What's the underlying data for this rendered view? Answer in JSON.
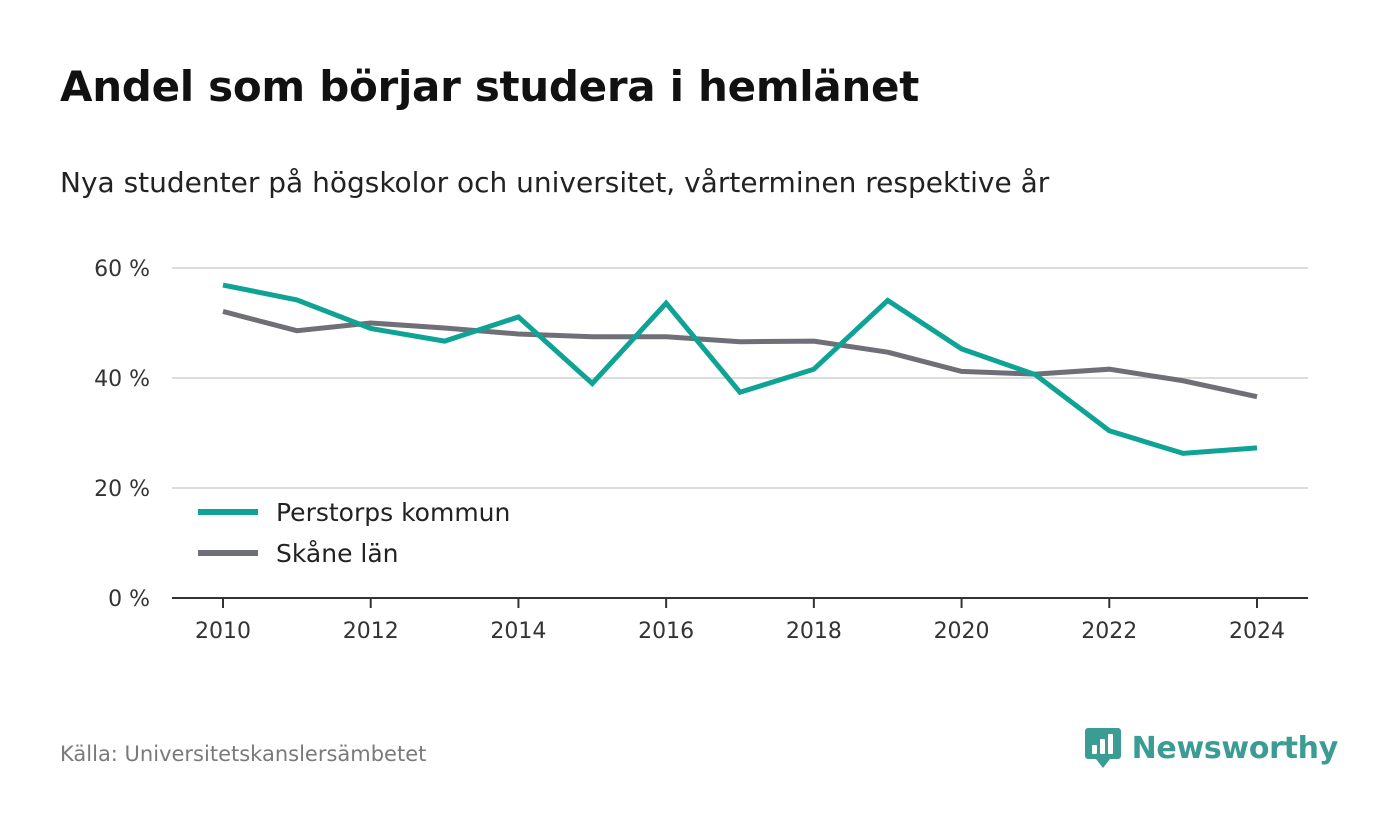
{
  "header": {
    "title": "Andel som börjar studera i hemlänet",
    "subtitle": "Nya studenter på högskolor och universitet, vårterminen respektive år"
  },
  "footer": {
    "source": "Källa: Universitetskanslersämbetet",
    "brand": "Newsworthy",
    "brand_icon": "newsworthy-logo-icon",
    "brand_color": "#3b9c94"
  },
  "chart_data": {
    "type": "line",
    "x": [
      2010,
      2011,
      2012,
      2013,
      2014,
      2015,
      2016,
      2017,
      2018,
      2019,
      2020,
      2021,
      2022,
      2023,
      2024
    ],
    "series": [
      {
        "name": "Perstorps kommun",
        "color": "#0fa396",
        "values": [
          56.9,
          54.2,
          49.0,
          46.7,
          51.1,
          39.0,
          53.6,
          37.4,
          41.6,
          54.1,
          45.3,
          40.6,
          30.4,
          26.3,
          27.3
        ]
      },
      {
        "name": "Skåne län",
        "color": "#6f6f78",
        "values": [
          52.1,
          48.6,
          50.0,
          49.1,
          48.0,
          47.5,
          47.5,
          46.6,
          46.7,
          44.7,
          41.2,
          40.7,
          41.6,
          39.5,
          36.6
        ]
      }
    ],
    "yticks": [
      0,
      20,
      40,
      60
    ],
    "ytick_labels": [
      "0 %",
      "20 %",
      "40 %",
      "60 %"
    ],
    "xticks": [
      2010,
      2012,
      2014,
      2016,
      2018,
      2020,
      2022,
      2024
    ],
    "xtick_labels": [
      "2010",
      "2012",
      "2014",
      "2016",
      "2018",
      "2020",
      "2022",
      "2024"
    ],
    "xlim": [
      2010,
      2024
    ],
    "ylim": [
      0,
      60
    ],
    "grid": "horizontal",
    "legend": "bottom-left"
  }
}
